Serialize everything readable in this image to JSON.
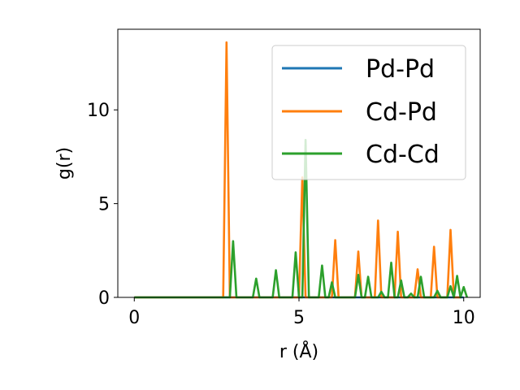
{
  "chart_data": {
    "type": "line",
    "xlabel": "r (Å)",
    "ylabel": "g(r)",
    "xlim": [
      -0.5,
      10.5
    ],
    "ylim": [
      0,
      14.3
    ],
    "xticks": [
      0,
      5,
      10
    ],
    "yticks": [
      0,
      5,
      10
    ],
    "grid": false,
    "legend_position": "top-right",
    "series": [
      {
        "name": "Pd-Pd",
        "color": "#1f77b4",
        "points": [
          [
            0,
            0
          ],
          [
            10,
            0
          ]
        ]
      },
      {
        "name": "Cd-Pd",
        "color": "#ff7f0e",
        "points": [
          [
            0,
            0
          ],
          [
            2.7,
            0
          ],
          [
            2.8,
            13.6
          ],
          [
            2.9,
            0
          ],
          [
            5.0,
            0
          ],
          [
            5.1,
            6.4
          ],
          [
            5.2,
            0
          ],
          [
            6.0,
            0
          ],
          [
            6.1,
            3.05
          ],
          [
            6.2,
            0
          ],
          [
            6.7,
            0
          ],
          [
            6.8,
            2.45
          ],
          [
            6.9,
            0
          ],
          [
            7.3,
            0
          ],
          [
            7.4,
            4.1
          ],
          [
            7.5,
            0
          ],
          [
            7.9,
            0
          ],
          [
            8.0,
            3.5
          ],
          [
            8.1,
            0
          ],
          [
            8.5,
            0
          ],
          [
            8.6,
            1.5
          ],
          [
            8.7,
            0
          ],
          [
            9.0,
            0
          ],
          [
            9.1,
            2.7
          ],
          [
            9.2,
            0
          ],
          [
            9.5,
            0
          ],
          [
            9.6,
            3.6
          ],
          [
            9.7,
            0
          ],
          [
            9.9,
            0
          ]
        ]
      },
      {
        "name": "Cd-Cd",
        "color": "#2ca02c",
        "points": [
          [
            0,
            0
          ],
          [
            2.9,
            0
          ],
          [
            3.0,
            3.0
          ],
          [
            3.1,
            0
          ],
          [
            3.6,
            0
          ],
          [
            3.7,
            1.0
          ],
          [
            3.8,
            0
          ],
          [
            4.2,
            0
          ],
          [
            4.3,
            1.45
          ],
          [
            4.4,
            0
          ],
          [
            4.8,
            0
          ],
          [
            4.9,
            2.4
          ],
          [
            5.0,
            0
          ],
          [
            5.1,
            0
          ],
          [
            5.2,
            8.4
          ],
          [
            5.3,
            0
          ],
          [
            5.6,
            0
          ],
          [
            5.7,
            1.7
          ],
          [
            5.8,
            0
          ],
          [
            5.9,
            0
          ],
          [
            6.0,
            0.8
          ],
          [
            6.1,
            0
          ],
          [
            6.7,
            0
          ],
          [
            6.8,
            1.2
          ],
          [
            6.9,
            0
          ],
          [
            7.0,
            0
          ],
          [
            7.1,
            1.1
          ],
          [
            7.2,
            0
          ],
          [
            7.4,
            0
          ],
          [
            7.5,
            0.3
          ],
          [
            7.6,
            0
          ],
          [
            7.7,
            0
          ],
          [
            7.8,
            1.85
          ],
          [
            7.9,
            0
          ],
          [
            8.0,
            0
          ],
          [
            8.1,
            0.9
          ],
          [
            8.2,
            0
          ],
          [
            8.3,
            0
          ],
          [
            8.4,
            0.2
          ],
          [
            8.5,
            0
          ],
          [
            8.6,
            0
          ],
          [
            8.7,
            1.1
          ],
          [
            8.8,
            0
          ],
          [
            9.1,
            0
          ],
          [
            9.2,
            0.35
          ],
          [
            9.3,
            0
          ],
          [
            9.5,
            0
          ],
          [
            9.6,
            0.6
          ],
          [
            9.7,
            0
          ],
          [
            9.7,
            0
          ],
          [
            9.8,
            1.15
          ],
          [
            9.9,
            0
          ],
          [
            10.0,
            0.55
          ],
          [
            10.1,
            0
          ]
        ]
      }
    ]
  }
}
